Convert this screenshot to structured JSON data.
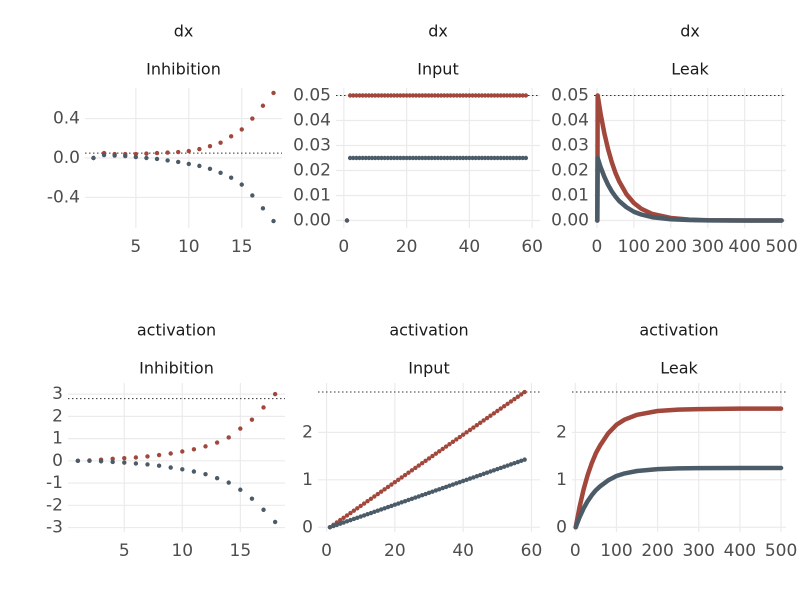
{
  "chart_data": [
    {
      "type": "scatter",
      "title": "dx",
      "subtitle": "Inhibition",
      "x": [
        1,
        2,
        3,
        4,
        5,
        6,
        7,
        8,
        9,
        10,
        11,
        12,
        13,
        14,
        15,
        16,
        17,
        18
      ],
      "series": [
        {
          "color": "#a1473b",
          "values": [
            0,
            0.05,
            0.04,
            0.04,
            0.04,
            0.045,
            0.05,
            0.055,
            0.06,
            0.07,
            0.09,
            0.12,
            0.155,
            0.22,
            0.29,
            0.4,
            0.53,
            0.66
          ]
        },
        {
          "color": "#4b5b68",
          "values": [
            0,
            0.03,
            0.025,
            0.02,
            0.01,
            0,
            -0.01,
            -0.025,
            -0.04,
            -0.06,
            -0.08,
            -0.11,
            -0.15,
            -0.2,
            -0.27,
            -0.38,
            -0.51,
            -0.64
          ]
        }
      ],
      "hline": 0.05,
      "xlim": [
        0.2,
        18.8
      ],
      "ylim": [
        -0.71,
        0.71
      ],
      "xticks": [
        5,
        10,
        15
      ],
      "yticks": [
        -0.4,
        {
          "value": 0,
          "label": "0.0"
        },
        0.4
      ],
      "grid": true
    },
    {
      "type": "scatter",
      "title": "dx",
      "subtitle": "Input",
      "x": [
        1,
        2,
        3,
        4,
        5,
        6,
        7,
        8,
        9,
        10,
        11,
        12,
        13,
        14,
        15,
        16,
        17,
        18,
        19,
        20,
        21,
        22,
        23,
        24,
        25,
        26,
        27,
        28,
        29,
        30,
        31,
        32,
        33,
        34,
        35,
        36,
        37,
        38,
        39,
        40,
        41,
        42,
        43,
        44,
        45,
        46,
        47,
        48,
        49,
        50,
        51,
        52,
        53,
        54,
        55,
        56,
        57,
        58
      ],
      "series": [
        {
          "color": "#a1473b",
          "values": [
            0,
            0.05,
            0.05,
            0.05,
            0.05,
            0.05,
            0.05,
            0.05,
            0.05,
            0.05,
            0.05,
            0.05,
            0.05,
            0.05,
            0.05,
            0.05,
            0.05,
            0.05,
            0.05,
            0.05,
            0.05,
            0.05,
            0.05,
            0.05,
            0.05,
            0.05,
            0.05,
            0.05,
            0.05,
            0.05,
            0.05,
            0.05,
            0.05,
            0.05,
            0.05,
            0.05,
            0.05,
            0.05,
            0.05,
            0.05,
            0.05,
            0.05,
            0.05,
            0.05,
            0.05,
            0.05,
            0.05,
            0.05,
            0.05,
            0.05,
            0.05,
            0.05,
            0.05,
            0.05,
            0.05,
            0.05,
            0.05,
            0.05
          ]
        },
        {
          "color": "#4b5b68",
          "values": [
            0,
            0.025,
            0.025,
            0.025,
            0.025,
            0.025,
            0.025,
            0.025,
            0.025,
            0.025,
            0.025,
            0.025,
            0.025,
            0.025,
            0.025,
            0.025,
            0.025,
            0.025,
            0.025,
            0.025,
            0.025,
            0.025,
            0.025,
            0.025,
            0.025,
            0.025,
            0.025,
            0.025,
            0.025,
            0.025,
            0.025,
            0.025,
            0.025,
            0.025,
            0.025,
            0.025,
            0.025,
            0.025,
            0.025,
            0.025,
            0.025,
            0.025,
            0.025,
            0.025,
            0.025,
            0.025,
            0.025,
            0.025,
            0.025,
            0.025,
            0.025,
            0.025,
            0.025,
            0.025,
            0.025,
            0.025,
            0.025,
            0.025
          ]
        }
      ],
      "hline": 0.05,
      "xlim": [
        -2.5,
        62.5
      ],
      "ylim": [
        -0.003,
        0.053
      ],
      "xticks": [
        0,
        20,
        40,
        60
      ],
      "yticks": [
        {
          "value": 0,
          "label": "0.00"
        },
        0.01,
        0.02,
        0.03,
        0.04,
        0.05
      ],
      "grid": true
    },
    {
      "type": "line",
      "title": "dx",
      "subtitle": "Leak",
      "x": [
        1,
        2,
        10,
        20,
        30,
        40,
        50,
        60,
        80,
        100,
        120,
        150,
        200,
        250,
        300,
        400,
        500
      ],
      "series": [
        {
          "color": "#a1473b",
          "values": [
            0,
            0.05,
            0.0426,
            0.0349,
            0.0286,
            0.0234,
            0.0191,
            0.0157,
            0.0105,
            0.007,
            0.0047,
            0.0026,
            0.001,
            0.00035,
            0.0001,
            0,
            0
          ]
        },
        {
          "color": "#4b5b68",
          "values": [
            0,
            0.025,
            0.0213,
            0.0175,
            0.0143,
            0.0117,
            0.0096,
            0.0078,
            0.0053,
            0.0035,
            0.0024,
            0.0013,
            0.0005,
            0.0002,
            5e-05,
            0,
            0
          ]
        }
      ],
      "hline": 0.05,
      "xlim": [
        -8,
        512
      ],
      "ylim": [
        -0.003,
        0.053
      ],
      "xticks": [
        0,
        100,
        200,
        300,
        400,
        500
      ],
      "yticks": [
        {
          "value": 0,
          "label": "0.00"
        },
        0.01,
        0.02,
        0.03,
        0.04,
        0.05
      ],
      "grid": true
    },
    {
      "type": "scatter",
      "title": "activation",
      "subtitle": "Inhibition",
      "x": [
        1,
        2,
        3,
        4,
        5,
        6,
        7,
        8,
        9,
        10,
        11,
        12,
        13,
        14,
        15,
        16,
        17,
        18
      ],
      "series": [
        {
          "color": "#a1473b",
          "values": [
            0,
            0.02,
            0.05,
            0.09,
            0.12,
            0.15,
            0.2,
            0.26,
            0.33,
            0.42,
            0.52,
            0.65,
            0.82,
            1.05,
            1.45,
            1.85,
            2.4,
            3
          ]
        },
        {
          "color": "#4b5b68",
          "values": [
            0,
            0,
            -0.02,
            -0.05,
            -0.08,
            -0.12,
            -0.16,
            -0.22,
            -0.3,
            -0.38,
            -0.48,
            -0.6,
            -0.78,
            -0.98,
            -1.3,
            -1.7,
            -2.2,
            -2.75
          ]
        }
      ],
      "hline": 2.8,
      "xlim": [
        0.15,
        18.85
      ],
      "ylim": [
        -3.2,
        3.5
      ],
      "xticks": [
        5,
        10,
        15
      ],
      "yticks": [
        -3,
        -2,
        -1,
        0,
        1,
        2,
        3
      ],
      "grid": true
    },
    {
      "type": "scatter",
      "title": "activation",
      "subtitle": "Input",
      "x": [
        1,
        2,
        3,
        4,
        5,
        6,
        7,
        8,
        9,
        10,
        11,
        12,
        13,
        14,
        15,
        16,
        17,
        18,
        19,
        20,
        21,
        22,
        23,
        24,
        25,
        26,
        27,
        28,
        29,
        30,
        31,
        32,
        33,
        34,
        35,
        36,
        37,
        38,
        39,
        40,
        41,
        42,
        43,
        44,
        45,
        46,
        47,
        48,
        49,
        50,
        51,
        52,
        53,
        54,
        55,
        56,
        57,
        58
      ],
      "series": [
        {
          "color": "#a1473b",
          "values": [
            0,
            0.05,
            0.1,
            0.15,
            0.2,
            0.25,
            0.3,
            0.35,
            0.4,
            0.45,
            0.5,
            0.55,
            0.6,
            0.65,
            0.7,
            0.75,
            0.8,
            0.85,
            0.9,
            0.95,
            1,
            1.05,
            1.1,
            1.15,
            1.2,
            1.25,
            1.3,
            1.35,
            1.4,
            1.45,
            1.5,
            1.55,
            1.6,
            1.65,
            1.7,
            1.75,
            1.8,
            1.85,
            1.9,
            1.95,
            2,
            2.05,
            2.1,
            2.15,
            2.2,
            2.25,
            2.3,
            2.35,
            2.4,
            2.45,
            2.5,
            2.55,
            2.6,
            2.65,
            2.7,
            2.75,
            2.8,
            2.85
          ]
        },
        {
          "color": "#4b5b68",
          "values": [
            0,
            0.025,
            0.05,
            0.075,
            0.1,
            0.125,
            0.15,
            0.175,
            0.2,
            0.225,
            0.25,
            0.275,
            0.3,
            0.325,
            0.35,
            0.375,
            0.4,
            0.425,
            0.45,
            0.475,
            0.5,
            0.525,
            0.55,
            0.575,
            0.6,
            0.625,
            0.65,
            0.675,
            0.7,
            0.725,
            0.75,
            0.775,
            0.8,
            0.825,
            0.85,
            0.875,
            0.9,
            0.925,
            0.95,
            0.975,
            1,
            1.025,
            1.05,
            1.075,
            1.1,
            1.125,
            1.15,
            1.175,
            1.2,
            1.225,
            1.25,
            1.275,
            1.3,
            1.325,
            1.35,
            1.375,
            1.4,
            1.425
          ]
        }
      ],
      "hline": 2.85,
      "xlim": [
        -2.5,
        62.5
      ],
      "ylim": [
        -0.1,
        3.04
      ],
      "xticks": [
        0,
        20,
        40,
        60
      ],
      "yticks": [
        0,
        1,
        2
      ],
      "grid": true
    },
    {
      "type": "line",
      "title": "activation",
      "subtitle": "Leak",
      "x": [
        1,
        2,
        10,
        20,
        30,
        40,
        50,
        60,
        80,
        100,
        120,
        150,
        200,
        250,
        300,
        400,
        500
      ],
      "series": [
        {
          "color": "#a1473b",
          "values": [
            0,
            0.05,
            0.41,
            0.79,
            1.1,
            1.35,
            1.56,
            1.72,
            1.98,
            2.16,
            2.27,
            2.37,
            2.45,
            2.48,
            2.49,
            2.5,
            2.5
          ]
        },
        {
          "color": "#4b5b68",
          "values": [
            0,
            0.025,
            0.205,
            0.395,
            0.55,
            0.675,
            0.78,
            0.86,
            0.99,
            1.08,
            1.135,
            1.185,
            1.225,
            1.24,
            1.245,
            1.25,
            1.25
          ]
        }
      ],
      "hline": 2.85,
      "xlim": [
        -8,
        512
      ],
      "ylim": [
        -0.1,
        3.04
      ],
      "xticks": [
        0,
        100,
        200,
        300,
        400,
        500
      ],
      "yticks": [
        0,
        1,
        2
      ],
      "grid": true
    }
  ]
}
